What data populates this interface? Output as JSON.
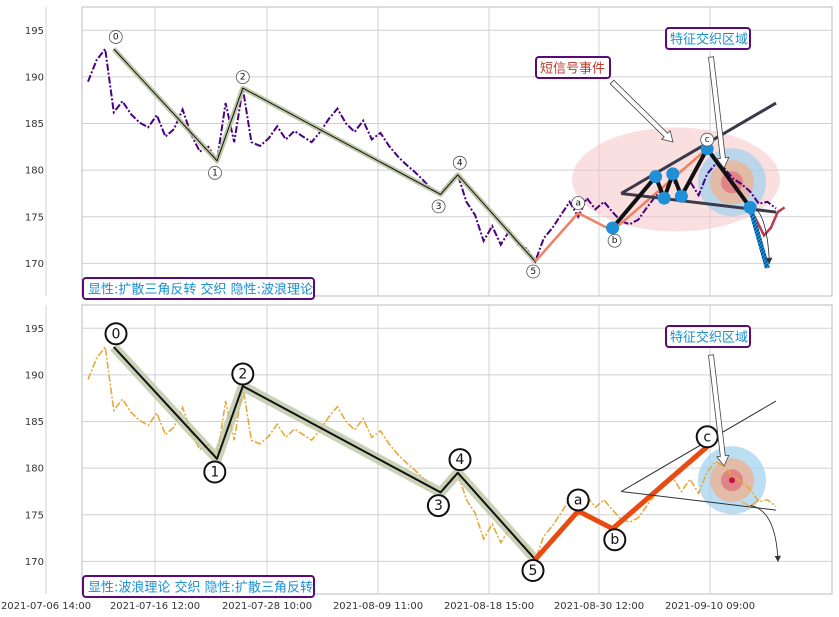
{
  "chart_data": {
    "type": "line",
    "x_ticks": [
      "2021-07-06 14:00",
      "2021-07-16 12:00",
      "2021-07-28 10:00",
      "2021-08-09 11:00",
      "2021-08-18 15:00",
      "2021-08-30 12:00",
      "2021-09-10 09:00"
    ],
    "y_ticks": [
      170,
      175,
      180,
      185,
      190,
      195
    ],
    "ylim": [
      166.5,
      197.5
    ],
    "grid": true,
    "price_series": [
      189.5,
      191.8,
      193.0,
      186.2,
      187.4,
      186.0,
      185.1,
      184.6,
      185.9,
      183.6,
      184.4,
      186.5,
      183.8,
      182.0,
      182.5,
      181.0,
      187.2,
      183.0,
      188.8,
      183.0,
      182.6,
      183.4,
      184.7,
      183.3,
      184.2,
      183.6,
      183.0,
      184.1,
      185.5,
      186.6,
      185.0,
      184.1,
      185.3,
      183.3,
      184.0,
      182.6,
      181.5,
      180.6,
      179.8,
      178.9,
      177.9,
      177.4,
      178.7,
      179.5,
      176.6,
      175.2,
      172.4,
      174.0,
      172.0,
      173.5,
      172.0,
      171.6,
      170.2,
      172.7,
      173.8,
      175.2,
      176.6,
      175.0,
      177.0,
      175.8,
      176.6,
      175.5,
      174.5,
      174.2,
      174.7,
      176.0,
      177.2,
      178.3,
      179.0,
      177.5,
      178.8,
      177.3,
      179.6,
      180.7,
      180.2,
      179.1,
      178.5,
      177.7,
      176.4,
      176.6,
      175.9
    ],
    "forecast_series": [
      175.9,
      174.5,
      173.0,
      173.8,
      175.5,
      176.0
    ],
    "elliott_waves": [
      {
        "label": "0",
        "x": 3,
        "y": 193.0
      },
      {
        "label": "1",
        "x": 15,
        "y": 181.0
      },
      {
        "label": "2",
        "x": 18,
        "y": 188.8
      },
      {
        "label": "3",
        "x": 41,
        "y": 177.4
      },
      {
        "label": "4",
        "x": 43,
        "y": 179.5
      },
      {
        "label": "5",
        "x": 52,
        "y": 170.2
      }
    ],
    "corrective_waves": [
      {
        "label": "a",
        "x": 57,
        "y": 175.4
      },
      {
        "label": "b",
        "x": 61,
        "y": 173.5
      },
      {
        "label": "c",
        "x": 72,
        "y": 182.3
      }
    ],
    "triangle_lines": [
      {
        "x": [
          62,
          80
        ],
        "y": [
          177.5,
          187.2
        ]
      },
      {
        "x": [
          62,
          80
        ],
        "y": [
          177.5,
          175.5
        ]
      }
    ],
    "touch_points": [
      {
        "x": 61,
        "y": 173.8
      },
      {
        "x": 66,
        "y": 179.3
      },
      {
        "x": 67,
        "y": 177.0
      },
      {
        "x": 68,
        "y": 179.6
      },
      {
        "x": 69,
        "y": 177.2
      },
      {
        "x": 72,
        "y": 182.3
      },
      {
        "x": 77,
        "y": 176.0
      }
    ],
    "feature_point": {
      "x": 75,
      "y": 178.7
    },
    "forecast_end": {
      "x": 79,
      "y": 169.5
    }
  },
  "panels": [
    {
      "legend": "显性:扩散三角反转 交织 隐性:波浪理论",
      "short_signal": "短信号事件",
      "zone_label": "特征交织区域"
    },
    {
      "legend": "显性:波浪理论 交织 隐性:扩散三角反转",
      "zone_label": "特征交织区域"
    }
  ],
  "colors": {
    "top_price": "#4b0082",
    "bottom_price": "#e8a93a",
    "wave_line": "#111111",
    "wave_halo": "#b9c3a0",
    "top_correction": "#f08060",
    "bottom_correction": "#e84a10",
    "callout_red": "#c0392b",
    "callout_blue": "#1a8fd0",
    "callout_border": "#5a0a78",
    "legend_text": "#1a8fd0",
    "point": "#1f8fd8",
    "forecast": "#1e8cd6"
  }
}
